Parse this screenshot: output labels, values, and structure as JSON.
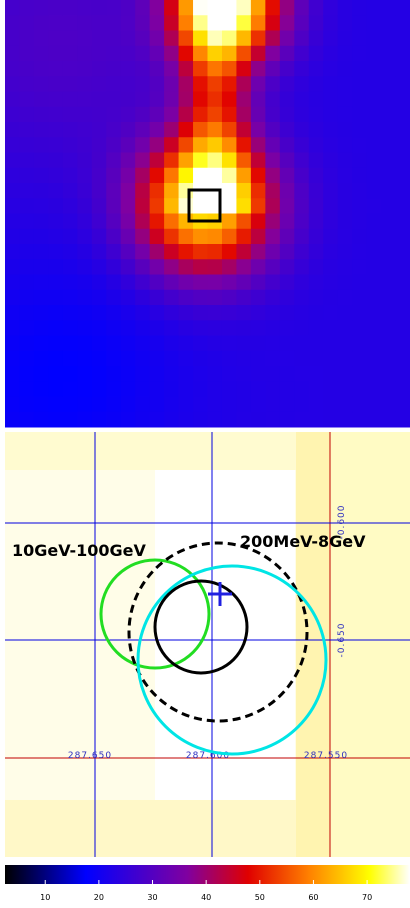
{
  "regions": {
    "low_energy": "10GeV-100GeV",
    "high_energy": "200MeV-8GeV"
  },
  "grid": {
    "ra_labels": [
      "287.650",
      "287.600",
      "287.550"
    ],
    "dec_labels": [
      "-0.600",
      "-0.650"
    ]
  },
  "colorbar": {
    "range": [
      2.5,
      78
    ],
    "ticks": [
      10,
      20,
      30,
      40,
      50,
      60,
      70
    ]
  }
}
